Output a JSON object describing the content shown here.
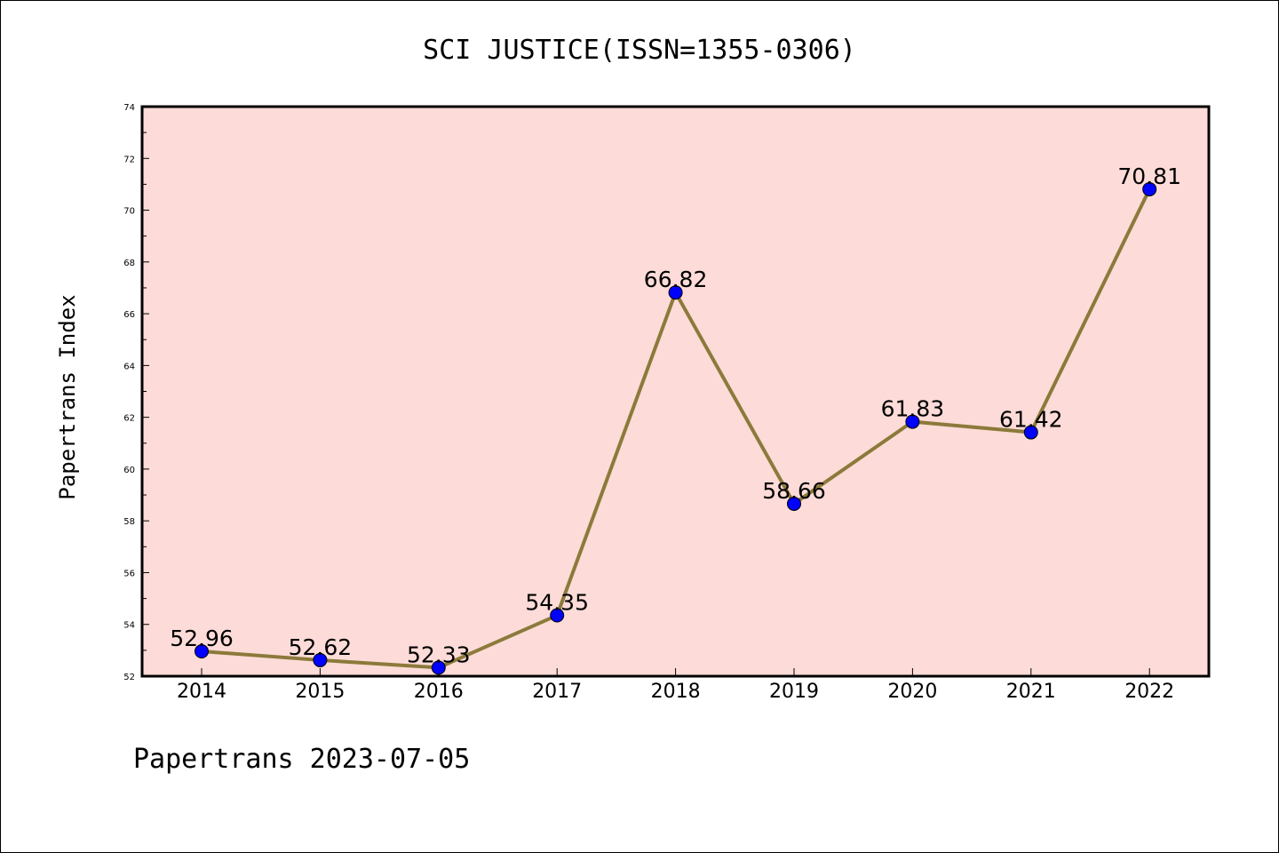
{
  "chart_data": {
    "type": "line",
    "title": "SCI JUSTICE(ISSN=1355-0306)",
    "ylabel": "Papertrans Index",
    "xlabel": "",
    "categories": [
      "2014",
      "2015",
      "2016",
      "2017",
      "2018",
      "2019",
      "2020",
      "2021",
      "2022"
    ],
    "values": [
      52.96,
      52.62,
      52.33,
      54.35,
      66.82,
      58.66,
      61.83,
      61.42,
      70.81
    ],
    "data_labels": [
      "52.96",
      "52.62",
      "52.33",
      "54.35",
      "66.82",
      "58.66",
      "61.83",
      "61.42",
      "70.81"
    ],
    "ylim": [
      52,
      74
    ],
    "yticks": [
      "52",
      "54",
      "56",
      "58",
      "60",
      "62",
      "64",
      "66",
      "68",
      "70",
      "72",
      "74"
    ],
    "grid": false,
    "colors": {
      "line": "#8b7a3a",
      "marker": "#0000ff",
      "plot_background": "#fddbd8"
    }
  },
  "footer": {
    "text": "Papertrans 2023-07-05"
  }
}
